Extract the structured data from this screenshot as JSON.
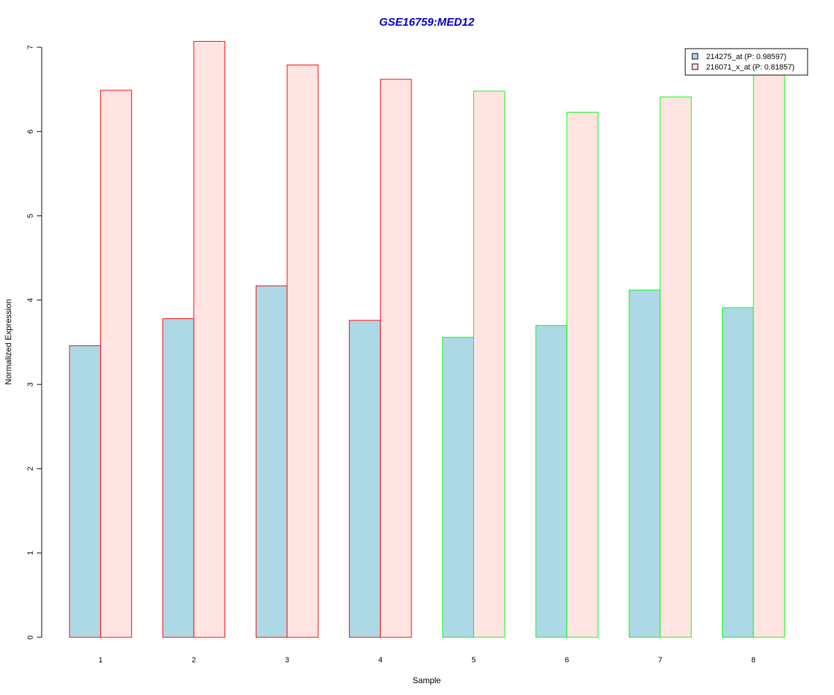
{
  "chart_data": {
    "type": "bar",
    "title": "GSE16759:MED12",
    "xlabel": "Sample",
    "ylabel": "Normalized Expression",
    "categories": [
      "1",
      "2",
      "3",
      "4",
      "5",
      "6",
      "7",
      "8"
    ],
    "ylim": [
      0,
      7
    ],
    "yticks": [
      "0",
      "1",
      "2",
      "3",
      "4",
      "5",
      "6",
      "7"
    ],
    "grid": false,
    "legend_position": "top-right",
    "series": [
      {
        "name": "214275_at (P: 0.98597)",
        "values": [
          3.46,
          3.78,
          4.17,
          3.76,
          3.56,
          3.7,
          4.12,
          3.91
        ],
        "fill": "#ADD8E6"
      },
      {
        "name": "216071_x_at (P: 0.81857)",
        "values": [
          6.49,
          7.07,
          6.79,
          6.62,
          6.48,
          6.23,
          6.41,
          6.69
        ],
        "fill": "#FFE4E1"
      }
    ],
    "group_border_colors": [
      "#FF0000",
      "#FF0000",
      "#FF0000",
      "#FF0000",
      "#00FF00",
      "#00FF00",
      "#00FF00",
      "#00FF00"
    ],
    "title_color": "#0000CD"
  }
}
